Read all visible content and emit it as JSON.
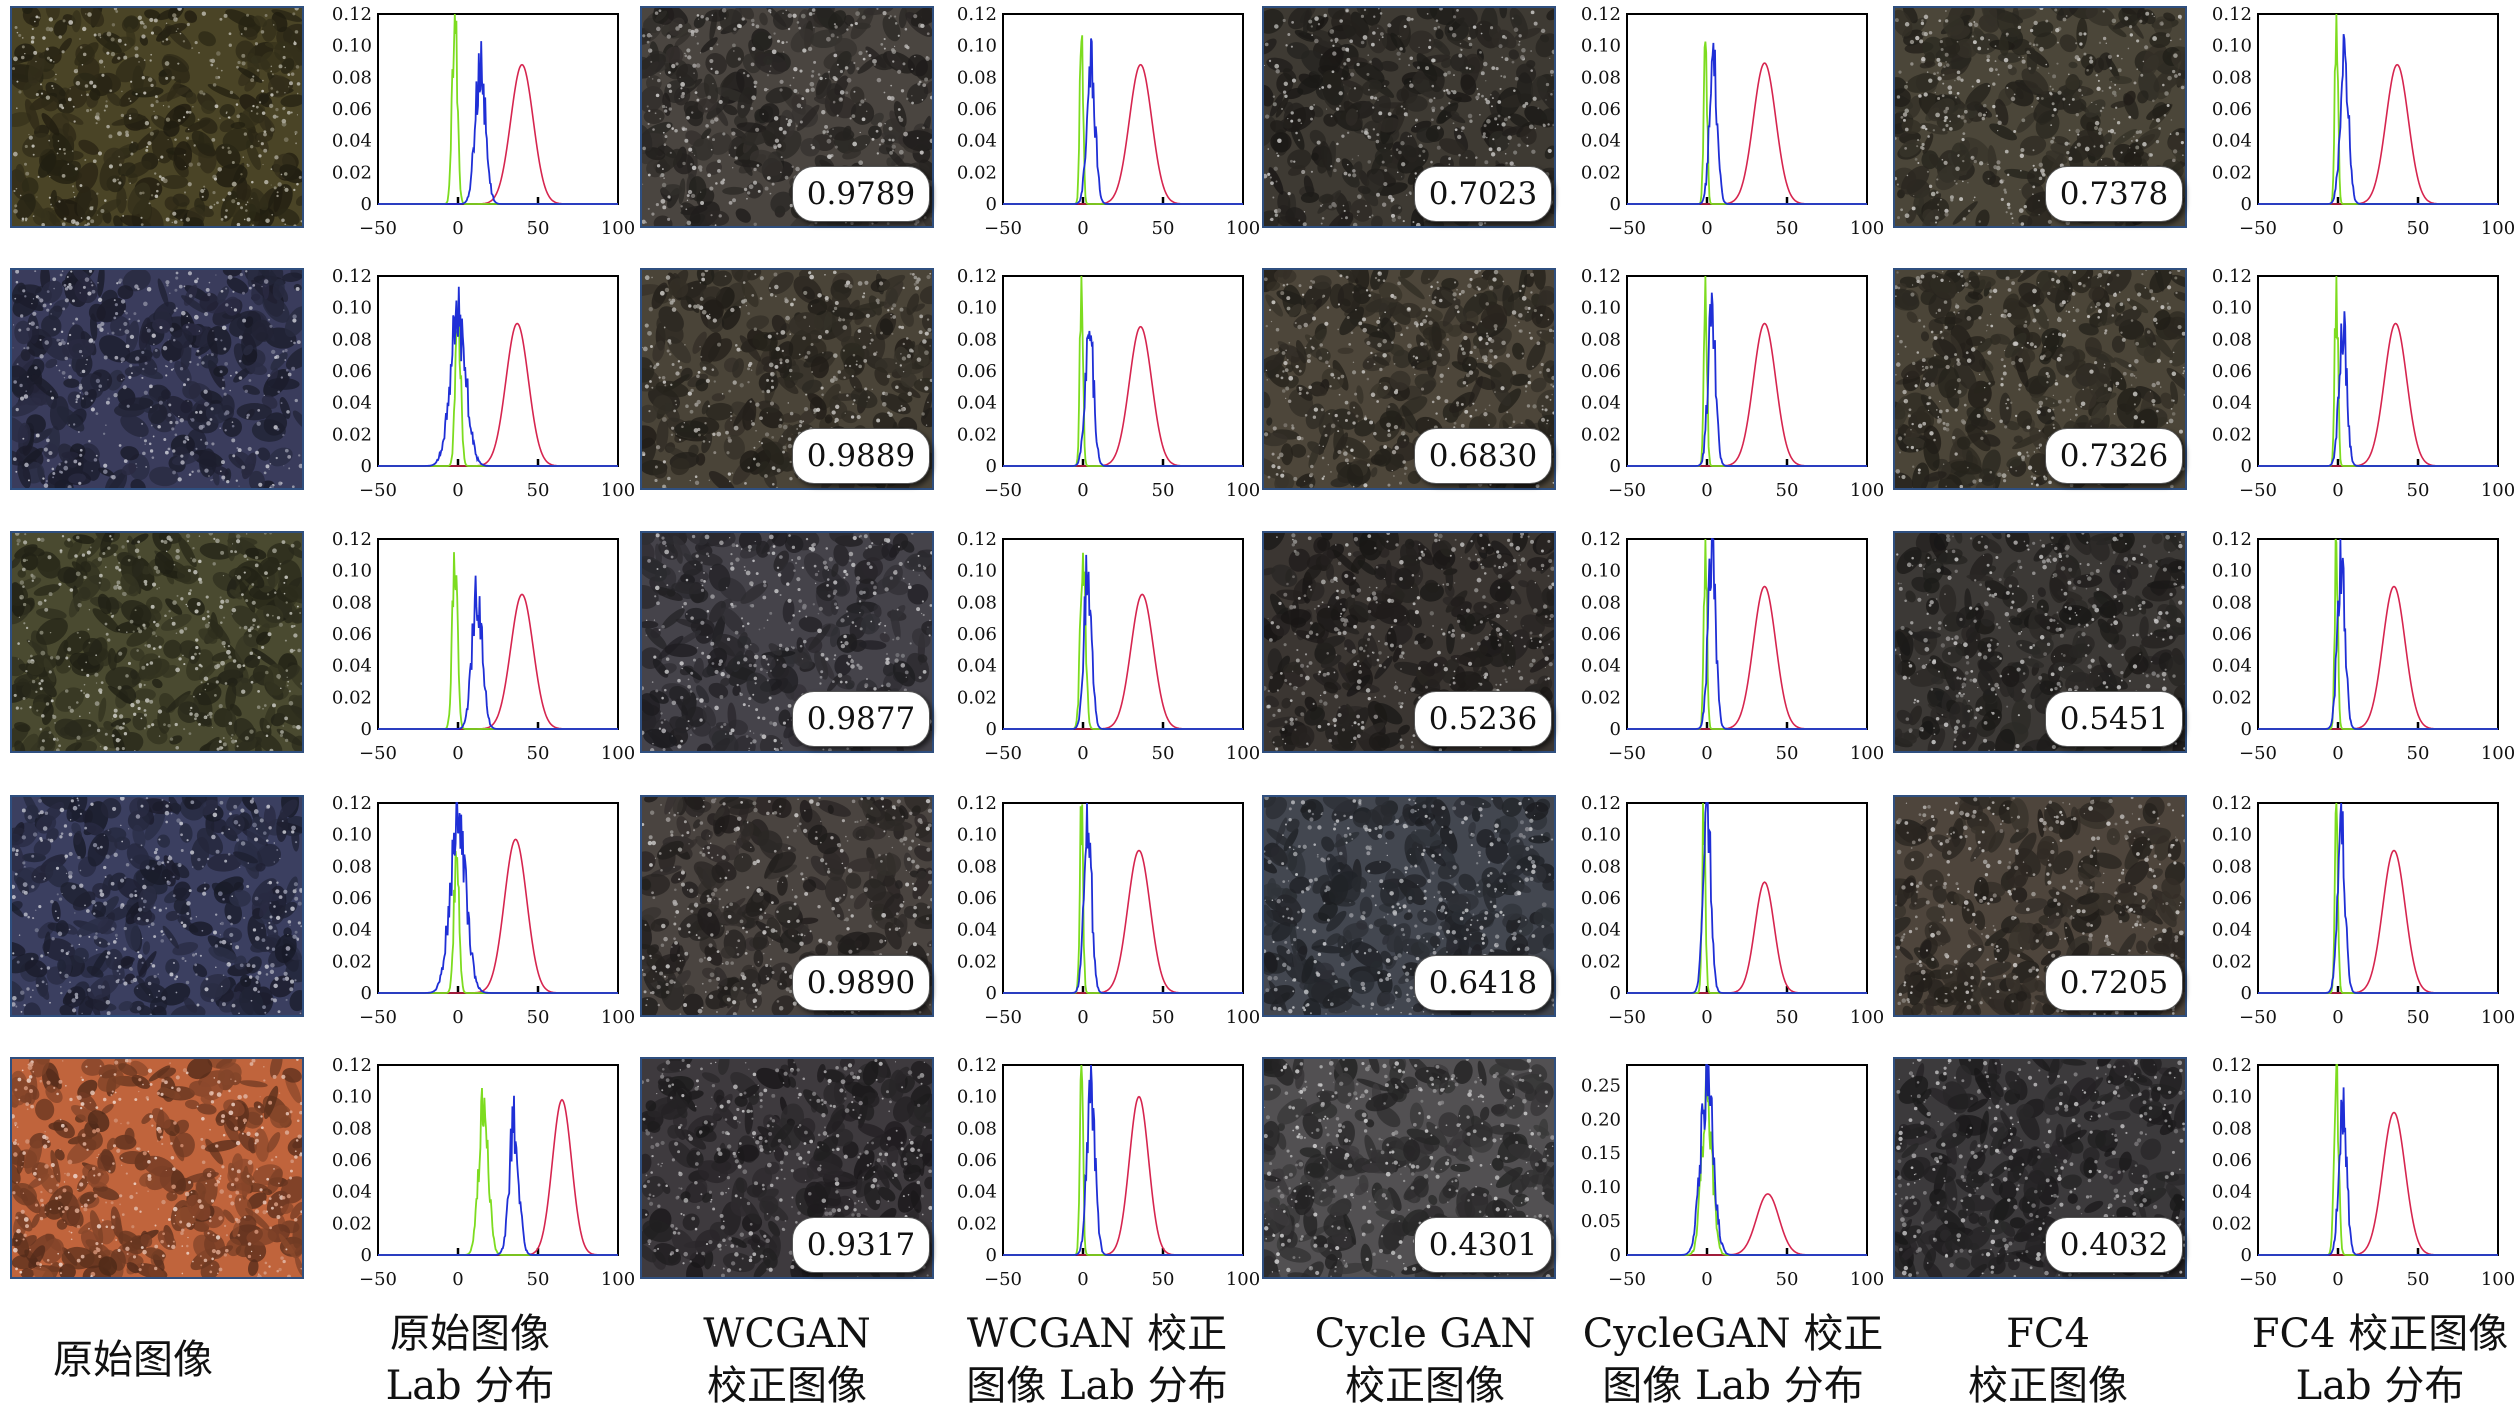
{
  "chart_data": {
    "type": "figure-grid",
    "rows": 5,
    "columns": [
      {
        "kind": "image",
        "caption": [
          "原始图像"
        ]
      },
      {
        "kind": "histogram",
        "caption": [
          "原始图像",
          "Lab 分布"
        ]
      },
      {
        "kind": "image",
        "caption": [
          "WCGAN",
          "校正图像"
        ]
      },
      {
        "kind": "histogram",
        "caption": [
          "WCGAN 校正",
          "图像 Lab 分布"
        ]
      },
      {
        "kind": "image",
        "caption": [
          "Cycle GAN",
          "校正图像"
        ]
      },
      {
        "kind": "histogram",
        "caption": [
          "CycleGAN 校正",
          "图像 Lab 分布"
        ]
      },
      {
        "kind": "image",
        "caption": [
          "FC4",
          "校正图像"
        ]
      },
      {
        "kind": "histogram",
        "caption": [
          "FC4 校正图像",
          "Lab 分布"
        ]
      }
    ],
    "scores": {
      "WCGAN": [
        "0.9789",
        "0.9889",
        "0.9877",
        "0.9890",
        "0.9317"
      ],
      "CycleGAN": [
        "0.7023",
        "0.6830",
        "0.5236",
        "0.6418",
        "0.4301"
      ],
      "FC4": [
        "0.7378",
        "0.7326",
        "0.5451",
        "0.7205",
        "0.4032"
      ]
    },
    "histogram_axes": {
      "x_ticks": [
        "−50",
        "0",
        "50",
        "100"
      ],
      "xlim": [
        -50,
        100
      ],
      "y_ticks_default": [
        "0",
        "0.02",
        "0.04",
        "0.06",
        "0.08",
        "0.10",
        "0.12"
      ],
      "ylim_default": [
        0,
        0.12
      ],
      "y_ticks_wide": [
        "0",
        "0.05",
        "0.10",
        "0.15",
        "0.20",
        "0.25"
      ],
      "ylim_wide": [
        0,
        0.28
      ]
    },
    "series_colors": {
      "L": "#d6254f",
      "a": "#7ddc1f",
      "b": "#1f2fd6"
    },
    "histograms": [
      [
        {
          "ylim": "default",
          "L": {
            "mu": 40,
            "sigma": 7,
            "peak": 0.088
          },
          "a": {
            "mu": -2,
            "sigma": 1.6,
            "peak": 0.12
          },
          "b": {
            "mu": 14,
            "sigma": 3.2,
            "peak": 0.09
          }
        },
        {
          "ylim": "default",
          "L": {
            "mu": 36,
            "sigma": 7,
            "peak": 0.088
          },
          "a": {
            "mu": -1,
            "sigma": 1.0,
            "peak": 0.12
          },
          "b": {
            "mu": 5,
            "sigma": 2.6,
            "peak": 0.088
          }
        },
        {
          "ylim": "default",
          "L": {
            "mu": 36,
            "sigma": 7,
            "peak": 0.089
          },
          "a": {
            "mu": -1,
            "sigma": 1.0,
            "peak": 0.12
          },
          "b": {
            "mu": 4,
            "sigma": 2.4,
            "peak": 0.093
          }
        },
        {
          "ylim": "default",
          "L": {
            "mu": 37,
            "sigma": 7,
            "peak": 0.088
          },
          "a": {
            "mu": -1,
            "sigma": 1.0,
            "peak": 0.12
          },
          "b": {
            "mu": 4,
            "sigma": 2.6,
            "peak": 0.093
          }
        }
      ],
      [
        {
          "ylim": "default",
          "L": {
            "mu": 37,
            "sigma": 7,
            "peak": 0.09
          },
          "a": {
            "mu": 0,
            "sigma": 1.6,
            "peak": 0.103
          },
          "b": {
            "mu": 0,
            "sigma": 5,
            "peak": 0.095
          }
        },
        {
          "ylim": "default",
          "L": {
            "mu": 36,
            "sigma": 7,
            "peak": 0.088
          },
          "a": {
            "mu": -1,
            "sigma": 1.0,
            "peak": 0.12
          },
          "b": {
            "mu": 4,
            "sigma": 2.6,
            "peak": 0.09
          }
        },
        {
          "ylim": "default",
          "L": {
            "mu": 36,
            "sigma": 7,
            "peak": 0.09
          },
          "a": {
            "mu": -1,
            "sigma": 1.0,
            "peak": 0.12
          },
          "b": {
            "mu": 3,
            "sigma": 2.4,
            "peak": 0.095
          }
        },
        {
          "ylim": "default",
          "L": {
            "mu": 36,
            "sigma": 7,
            "peak": 0.09
          },
          "a": {
            "mu": -1,
            "sigma": 1.0,
            "peak": 0.12
          },
          "b": {
            "mu": 3,
            "sigma": 2.4,
            "peak": 0.09
          }
        }
      ],
      [
        {
          "ylim": "default",
          "L": {
            "mu": 40,
            "sigma": 7,
            "peak": 0.085
          },
          "a": {
            "mu": -2,
            "sigma": 1.6,
            "peak": 0.12
          },
          "b": {
            "mu": 12,
            "sigma": 3.2,
            "peak": 0.088
          }
        },
        {
          "ylim": "default",
          "L": {
            "mu": 37,
            "sigma": 7,
            "peak": 0.085
          },
          "a": {
            "mu": 0,
            "sigma": 1.6,
            "peak": 0.12
          },
          "b": {
            "mu": 3,
            "sigma": 2.4,
            "peak": 0.1
          }
        },
        {
          "ylim": "default",
          "L": {
            "mu": 36,
            "sigma": 7,
            "peak": 0.09
          },
          "a": {
            "mu": -1,
            "sigma": 1.0,
            "peak": 0.12
          },
          "b": {
            "mu": 3,
            "sigma": 2.4,
            "peak": 0.11
          }
        },
        {
          "ylim": "default",
          "L": {
            "mu": 35,
            "sigma": 7,
            "peak": 0.09
          },
          "a": {
            "mu": -1,
            "sigma": 1.0,
            "peak": 0.12
          },
          "b": {
            "mu": 2,
            "sigma": 2.4,
            "peak": 0.11
          }
        }
      ],
      [
        {
          "ylim": "default",
          "L": {
            "mu": 36,
            "sigma": 7,
            "peak": 0.097
          },
          "a": {
            "mu": -1,
            "sigma": 1.6,
            "peak": 0.09
          },
          "b": {
            "mu": 0,
            "sigma": 5,
            "peak": 0.11
          }
        },
        {
          "ylim": "default",
          "L": {
            "mu": 35,
            "sigma": 7,
            "peak": 0.09
          },
          "a": {
            "mu": -1,
            "sigma": 1.0,
            "peak": 0.12
          },
          "b": {
            "mu": 3,
            "sigma": 2.4,
            "peak": 0.11
          }
        },
        {
          "ylim": "default",
          "L": {
            "mu": 36,
            "sigma": 6,
            "peak": 0.07
          },
          "a": {
            "mu": -2,
            "sigma": 1.0,
            "peak": 0.12
          },
          "b": {
            "mu": 0,
            "sigma": 2.4,
            "peak": 0.12
          }
        },
        {
          "ylim": "default",
          "L": {
            "mu": 35,
            "sigma": 7,
            "peak": 0.09
          },
          "a": {
            "mu": -1,
            "sigma": 1.0,
            "peak": 0.12
          },
          "b": {
            "mu": 2,
            "sigma": 2.4,
            "peak": 0.11
          }
        }
      ],
      [
        {
          "ylim": "default",
          "L": {
            "mu": 65,
            "sigma": 6,
            "peak": 0.098
          },
          "a": {
            "mu": 16,
            "sigma": 3,
            "peak": 0.1
          },
          "b": {
            "mu": 35,
            "sigma": 3,
            "peak": 0.084
          }
        },
        {
          "ylim": "default",
          "L": {
            "mu": 35,
            "sigma": 6,
            "peak": 0.1
          },
          "a": {
            "mu": -1,
            "sigma": 1.0,
            "peak": 0.12
          },
          "b": {
            "mu": 5,
            "sigma": 2.6,
            "peak": 0.11
          }
        },
        {
          "ylim": "wide",
          "L": {
            "mu": 38,
            "sigma": 7,
            "peak": 0.09
          },
          "a": {
            "mu": 0,
            "sigma": 3.2,
            "peak": 0.25
          },
          "b": {
            "mu": 0,
            "sigma": 4,
            "peak": 0.26
          }
        },
        {
          "ylim": "default",
          "L": {
            "mu": 35,
            "sigma": 7,
            "peak": 0.09
          },
          "a": {
            "mu": -1,
            "sigma": 1.4,
            "peak": 0.12
          },
          "b": {
            "mu": 3,
            "sigma": 2.4,
            "peak": 0.1
          }
        }
      ]
    ],
    "photo_tints": [
      {
        "original": "#4a4426",
        "wcgan": "#4a4540",
        "cyclegan": "#3e3a33",
        "fc4": "#4b4639"
      },
      {
        "original": "#3a3c5c",
        "wcgan": "#4a4438",
        "cyclegan": "#4d463a",
        "fc4": "#4b4538"
      },
      {
        "original": "#4a4a30",
        "wcgan": "#45434a",
        "cyclegan": "#3b3632",
        "fc4": "#3c3936"
      },
      {
        "original": "#3b3f60",
        "wcgan": "#4a4440",
        "cyclegan": "#434750",
        "fc4": "#4e453c"
      },
      {
        "original": "#c0643c",
        "wcgan": "#3e3a3e",
        "cyclegan": "#525052",
        "fc4": "#3c3a3c"
      }
    ]
  }
}
